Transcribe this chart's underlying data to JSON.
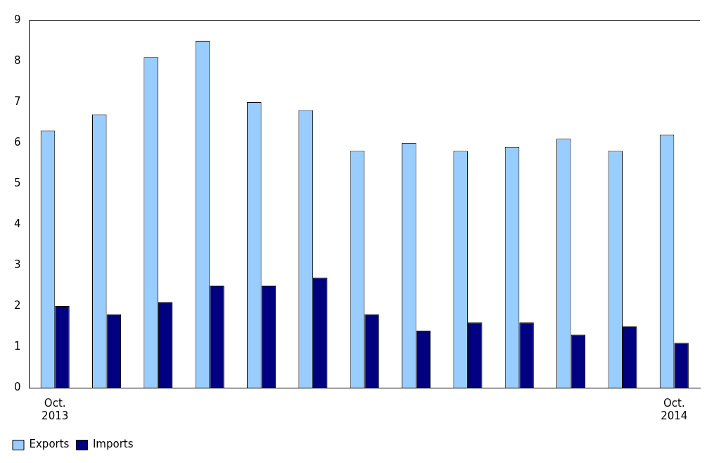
{
  "chart_data": {
    "type": "bar",
    "categories": [
      "Oct. 2013",
      null,
      null,
      null,
      null,
      null,
      null,
      null,
      null,
      null,
      null,
      null,
      "Oct. 2014"
    ],
    "series": [
      {
        "name": "Exports",
        "color": "#99ccff",
        "values": [
          6.3,
          6.7,
          8.1,
          8.5,
          7.0,
          6.8,
          5.8,
          6.0,
          5.8,
          5.9,
          6.1,
          5.8,
          6.2
        ]
      },
      {
        "name": "Imports",
        "color": "#000080",
        "values": [
          2.0,
          1.8,
          2.1,
          2.5,
          2.5,
          2.7,
          1.8,
          1.4,
          1.6,
          1.6,
          1.3,
          1.5,
          1.1
        ]
      }
    ],
    "ylim": [
      0,
      9
    ],
    "yticks": [
      0,
      1,
      2,
      3,
      4,
      5,
      6,
      7,
      8,
      9
    ],
    "grid": false,
    "legend": "bottom"
  }
}
